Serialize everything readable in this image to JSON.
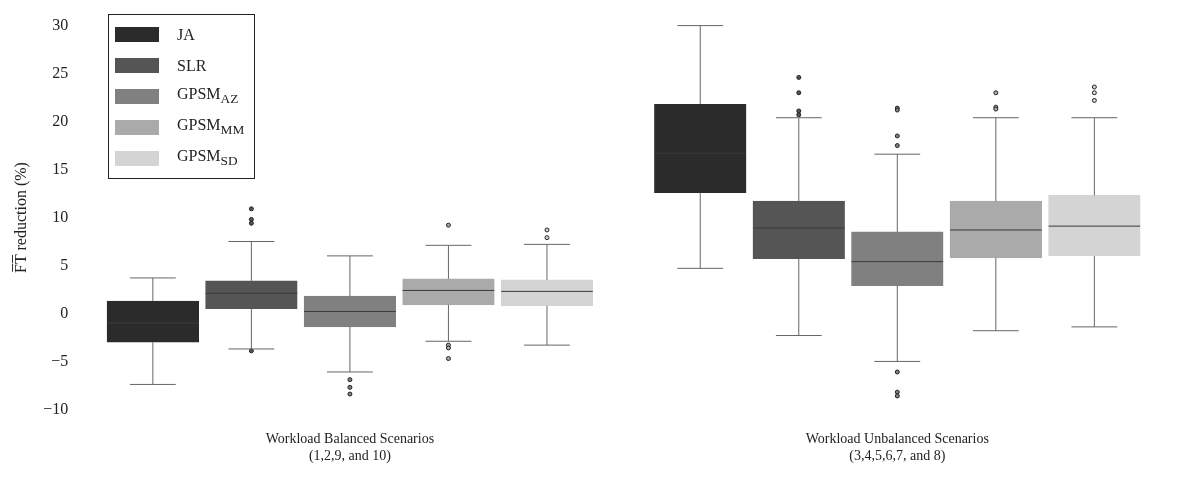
{
  "chart_data": {
    "type": "box",
    "categories": [
      "Workload Balanced Scenarios\n(1,2,9, and 10)",
      "Workload Unbalanced Scenarios\n(3,4,5,6,7, and 8)"
    ],
    "ylabel": "F̅T̅ reduction (%)",
    "ylim": [
      -10,
      30
    ],
    "yticks": [
      -10,
      -5,
      0,
      5,
      10,
      15,
      20,
      25,
      30
    ],
    "legend": "top left",
    "series": [
      {
        "name": "JA",
        "color": "#2b2b2b",
        "boxes": [
          {
            "low": -7.4,
            "q1": -3.0,
            "median": -1.0,
            "q3": 1.3,
            "high": 3.7
          },
          {
            "low": 4.7,
            "q1": 12.6,
            "median": 16.7,
            "q3": 21.8,
            "high": 30.0
          }
        ]
      },
      {
        "name": "SLR",
        "color": "#555555",
        "boxes": [
          {
            "low": -3.7,
            "q1": 0.5,
            "median": 2.1,
            "q3": 3.4,
            "high": 7.5,
            "outliers": [
              10.9,
              9.8,
              9.4,
              -3.9
            ]
          },
          {
            "low": -2.3,
            "q1": 5.7,
            "median": 8.9,
            "q3": 11.7,
            "high": 20.4,
            "outliers": [
              24.6,
              23.0,
              21.1,
              20.7
            ]
          }
        ]
      },
      {
        "name": "GPSM$_{AZ}$",
        "color": "#808080",
        "boxes": [
          {
            "low": -6.1,
            "q1": -1.4,
            "median": 0.2,
            "q3": 1.8,
            "high": 6.0,
            "outliers": [
              -6.9,
              -7.7,
              -8.4
            ]
          },
          {
            "low": -5.0,
            "q1": 2.9,
            "median": 5.4,
            "q3": 8.5,
            "high": 16.6,
            "outliers": [
              21.4,
              21.2,
              18.5,
              17.5,
              -6.1,
              -8.2,
              -8.6
            ]
          }
        ]
      },
      {
        "name": "GPSM$_{MM}$",
        "color": "#aaaaaa",
        "boxes": [
          {
            "low": -2.9,
            "q1": 0.9,
            "median": 2.4,
            "q3": 3.6,
            "high": 7.1,
            "outliers": [
              9.2,
              -3.3,
              -3.6,
              -4.7
            ]
          },
          {
            "low": -1.8,
            "q1": 5.8,
            "median": 8.7,
            "q3": 11.7,
            "high": 20.4,
            "outliers": [
              23.0,
              21.5,
              21.3
            ]
          }
        ]
      },
      {
        "name": "GPSM$_{SD}$",
        "color": "#d4d4d4",
        "boxes": [
          {
            "low": -3.3,
            "q1": 0.8,
            "median": 2.3,
            "q3": 3.5,
            "high": 7.2,
            "outliers": [
              8.7,
              7.9
            ]
          },
          {
            "low": -1.4,
            "q1": 6.0,
            "median": 9.1,
            "q3": 12.3,
            "high": 20.4,
            "outliers": [
              23.6,
              23.0,
              22.2
            ]
          }
        ]
      }
    ]
  }
}
